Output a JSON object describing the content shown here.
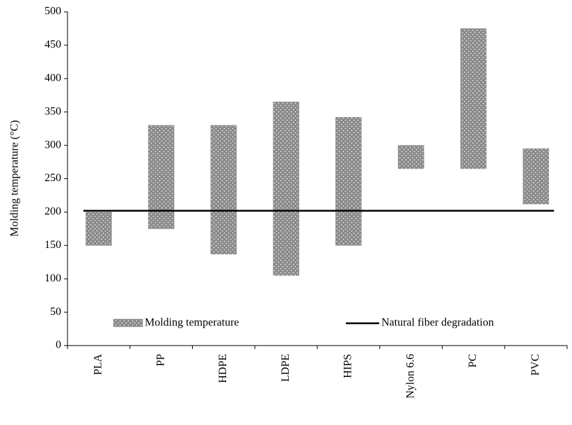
{
  "chart_data": {
    "type": "floating_bar",
    "ylabel": "Molding temperature (°C)",
    "categories": [
      "PLA",
      "PP",
      "HDPE",
      "LDPE",
      "HIPS",
      "Nylon 6.6",
      "PC",
      "PVC"
    ],
    "series": [
      {
        "name": "Molding temperature",
        "color": "#8a8a8a",
        "low": [
          150,
          175,
          137,
          105,
          150,
          265,
          265,
          212
        ],
        "high": [
          200,
          330,
          330,
          365,
          342,
          300,
          475,
          295
        ]
      },
      {
        "name": "Natural fiber degradation",
        "color": "#000000",
        "value": 202
      }
    ],
    "ylim": [
      0,
      500
    ],
    "yticks": [
      0,
      50,
      100,
      150,
      200,
      250,
      300,
      350,
      400,
      450,
      500
    ],
    "grid": false,
    "legend": "bottom"
  }
}
